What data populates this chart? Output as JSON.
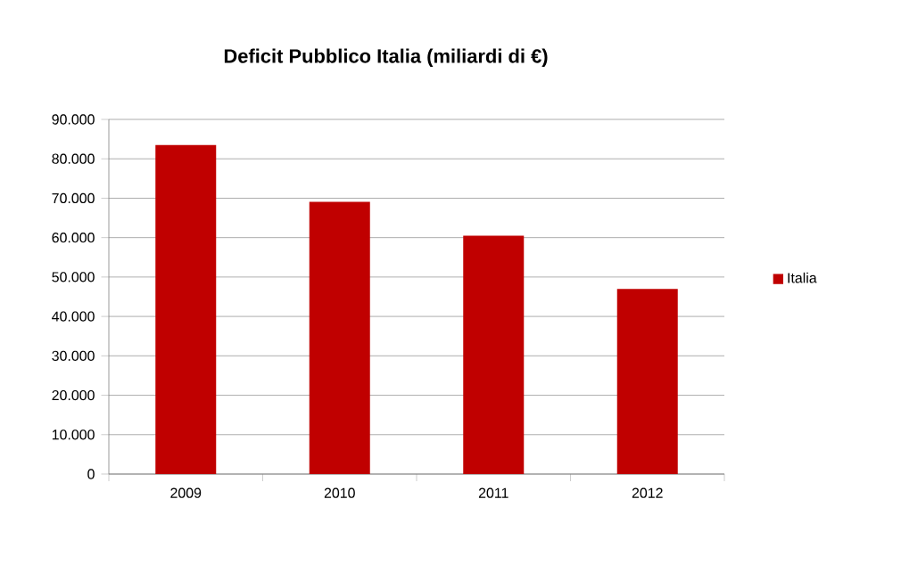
{
  "chart_data": {
    "type": "bar",
    "title": "Deficit Pubblico Italia (miliardi di €)",
    "categories": [
      "2009",
      "2010",
      "2011",
      "2012"
    ],
    "series": [
      {
        "name": "Italia",
        "color": "#c00000",
        "values": [
          83500,
          69100,
          60500,
          47000
        ]
      }
    ],
    "ylim": [
      0,
      90000
    ],
    "yticks": [
      0,
      {
        "value": 10000,
        "label": "10.000"
      },
      {
        "value": 20000,
        "label": "20.000"
      },
      {
        "value": 30000,
        "label": "30.000"
      },
      {
        "value": 40000,
        "label": "40.000"
      },
      {
        "value": 50000,
        "label": "50.000"
      },
      {
        "value": 60000,
        "label": "60.000"
      },
      {
        "value": 70000,
        "label": "70.000"
      },
      {
        "value": 80000,
        "label": "80.000"
      },
      {
        "value": 90000,
        "label": "90.000"
      }
    ],
    "grid": "y",
    "legend": "right"
  }
}
